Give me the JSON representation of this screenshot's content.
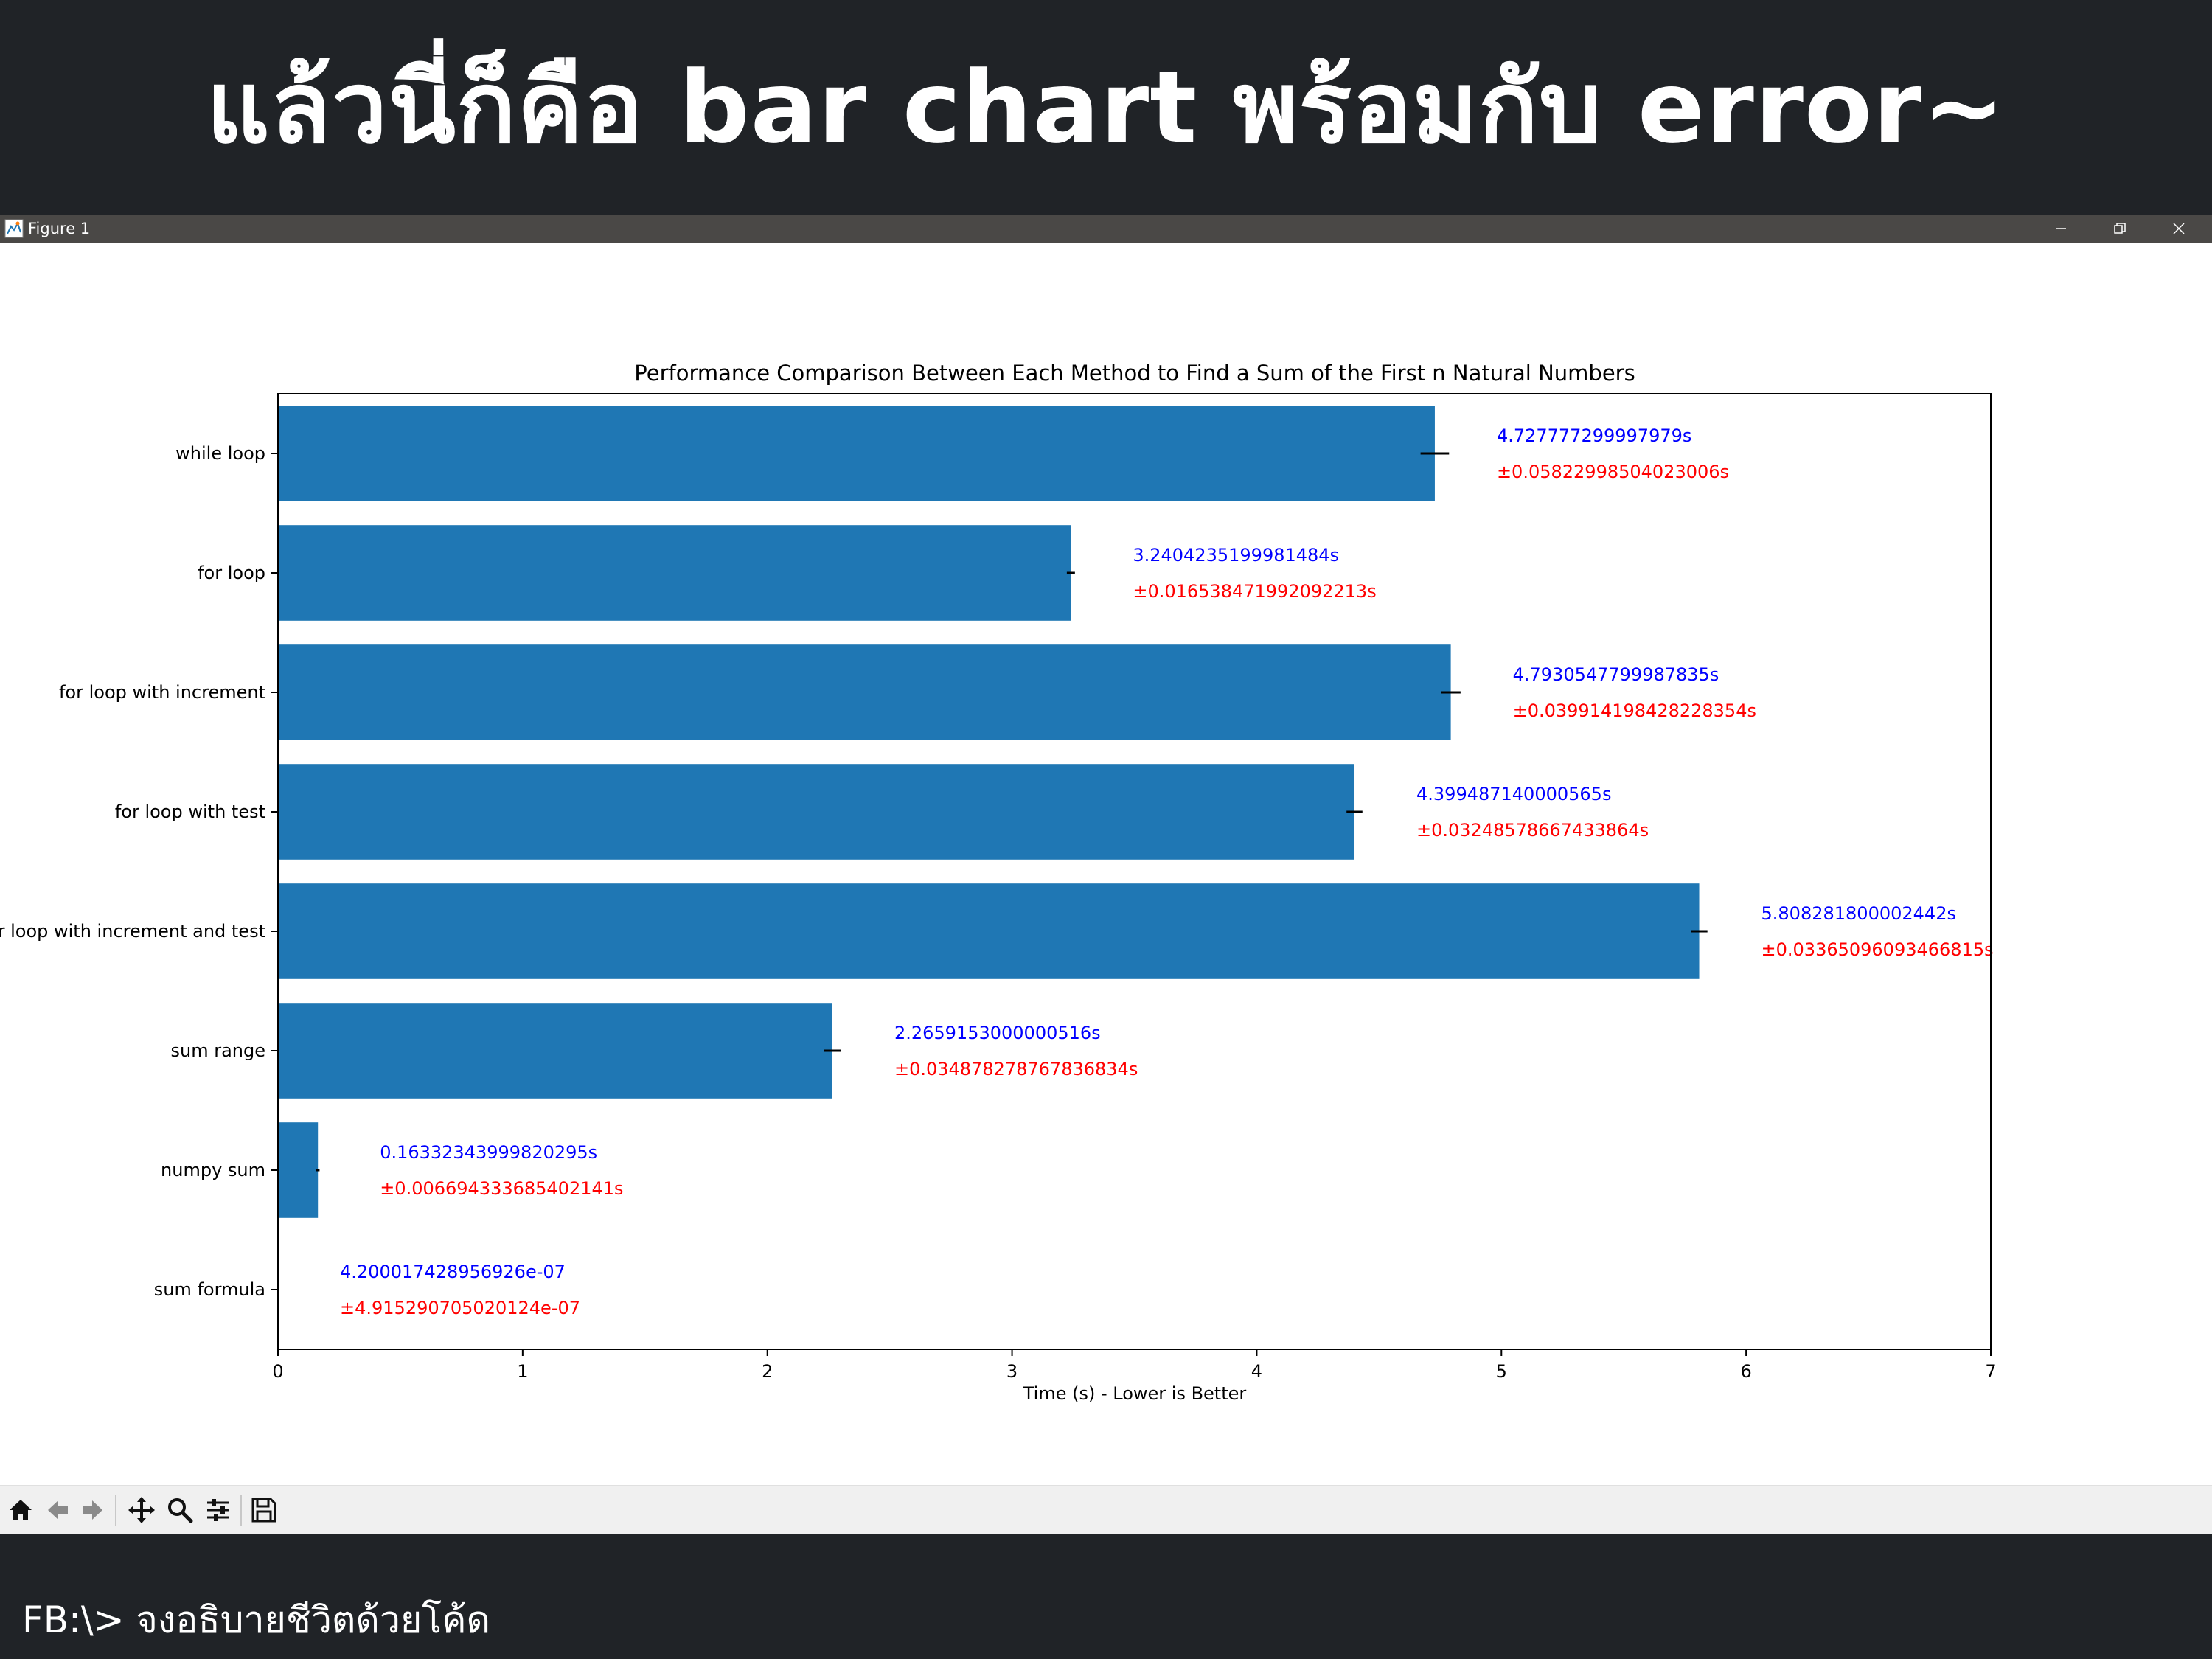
{
  "slide": {
    "title": "แล้วนี่ก็คือ bar chart พร้อมกับ error~",
    "footer": "FB:\\> จงอธิบายชีวิตด้วยโค้ด"
  },
  "window": {
    "title": "Figure 1",
    "controls": [
      "minimize-icon",
      "restore-icon",
      "close-icon"
    ]
  },
  "toolbar": {
    "tools": [
      "home-icon",
      "back-icon",
      "forward-icon",
      "pan-icon",
      "zoom-icon",
      "configure-subplots-icon",
      "save-icon"
    ]
  },
  "colors": {
    "background": "#202327",
    "titlebar": "#4a4846",
    "bar": "#1f77b4",
    "value_label": "#0000ff",
    "error_label": "#ff0000",
    "errorbar": "#000000"
  },
  "chart_data": {
    "type": "bar",
    "orientation": "horizontal",
    "title": "Performance Comparison Between Each Method to Find a Sum of the First n Natural Numbers",
    "xlabel": "Time (s) - Lower is Better",
    "ylabel": "",
    "xlim": [
      0,
      7
    ],
    "xticks": [
      "0",
      "1",
      "2",
      "3",
      "4",
      "5",
      "6",
      "7"
    ],
    "grid": false,
    "categories": [
      "while loop",
      "for loop",
      "for loop with increment",
      "for loop with test",
      "for loop with increment and test",
      "sum range",
      "numpy sum",
      "sum formula"
    ],
    "values": [
      4.727777299997979,
      3.2404235199981484,
      4.7930547799987835,
      4.399487140000565,
      5.808281800002442,
      2.2659153000000516,
      0.16332343999820295,
      4.200017428956926e-07
    ],
    "errors": [
      0.05822998504023006,
      0.016538471992092213,
      0.039914198428228354,
      0.03248578667433864,
      0.03365096093466815,
      0.034878278767836834,
      0.006694333685402141,
      4.915290705020124e-07
    ],
    "value_labels": [
      "4.727777299997979s",
      "3.2404235199981484s",
      "4.7930547799987835s",
      "4.399487140000565s",
      "5.808281800002442s",
      "2.2659153000000516s",
      "0.16332343999820295s",
      "4.200017428956926e-07"
    ],
    "error_labels": [
      "±0.05822998504023006s",
      "±0.016538471992092213s",
      "±0.039914198428228354s",
      "±0.03248578667433864s",
      "±0.03365096093466815s",
      "±0.034878278767836834s",
      "±0.006694333685402141s",
      "±4.915290705020124e-07"
    ]
  }
}
